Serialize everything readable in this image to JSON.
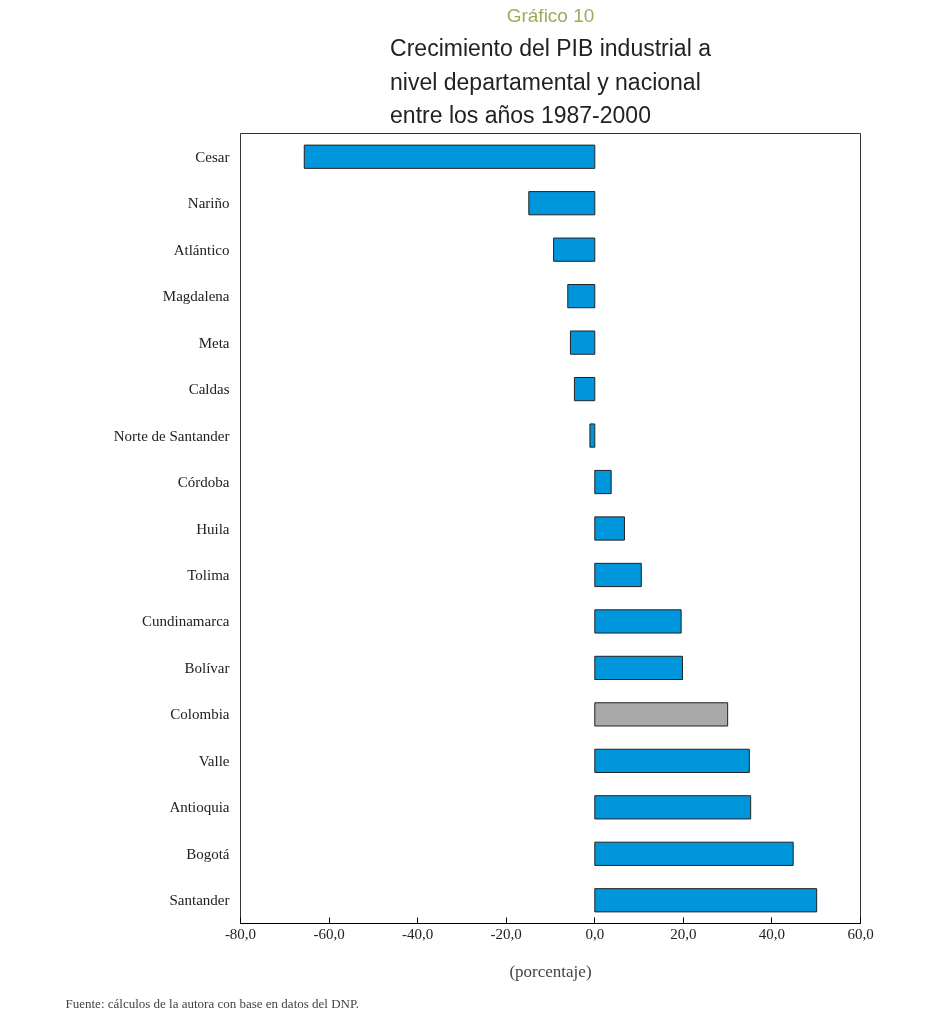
{
  "chart_data": {
    "type": "bar",
    "orientation": "horizontal",
    "title": "Crecimiento del PIB industrial a nivel departamental y nacional entre los años 1987-2000",
    "subtitle": "Gráfico 10",
    "xlabel": "(porcentaje)",
    "categories": [
      "Cesar",
      "Nariño",
      "Atlántico",
      "Magdalena",
      "Meta",
      "Caldas",
      "Norte de Santander",
      "Córdoba",
      "Huila",
      "Tolima",
      "Cundinamarca",
      "Bolívar",
      "Colombia",
      "Valle",
      "Antioquia",
      "Bogotá",
      "Santander"
    ],
    "values": [
      -65.6,
      -14.9,
      -9.3,
      -6.1,
      -5.5,
      -4.6,
      -1.1,
      3.7,
      6.7,
      10.5,
      19.5,
      19.8,
      30.0,
      34.9,
      35.2,
      44.8,
      50.1
    ],
    "colors": [
      "#0096dc",
      "#0096dc",
      "#0096dc",
      "#0096dc",
      "#0096dc",
      "#0096dc",
      "#0096dc",
      "#0096dc",
      "#0096dc",
      "#0096dc",
      "#0096dc",
      "#0096dc",
      "#a9a9a9",
      "#0096dc",
      "#0096dc",
      "#0096dc",
      "#0096dc"
    ],
    "xlim": [
      -80,
      60
    ],
    "xticks": [
      {
        "value": -80,
        "label": "-80,0"
      },
      {
        "value": -60,
        "label": "-60,0"
      },
      {
        "value": -40,
        "label": "-40,0"
      },
      {
        "value": -20,
        "label": "-20,0"
      },
      {
        "value": 0,
        "label": "0,0"
      },
      {
        "value": 20,
        "label": "20,0"
      },
      {
        "value": 40,
        "label": "40,0"
      },
      {
        "value": 60,
        "label": "60,0"
      }
    ],
    "grid": false,
    "annotations": [
      "Fuente: cálculos de la autora con base en datos del DNP."
    ]
  }
}
